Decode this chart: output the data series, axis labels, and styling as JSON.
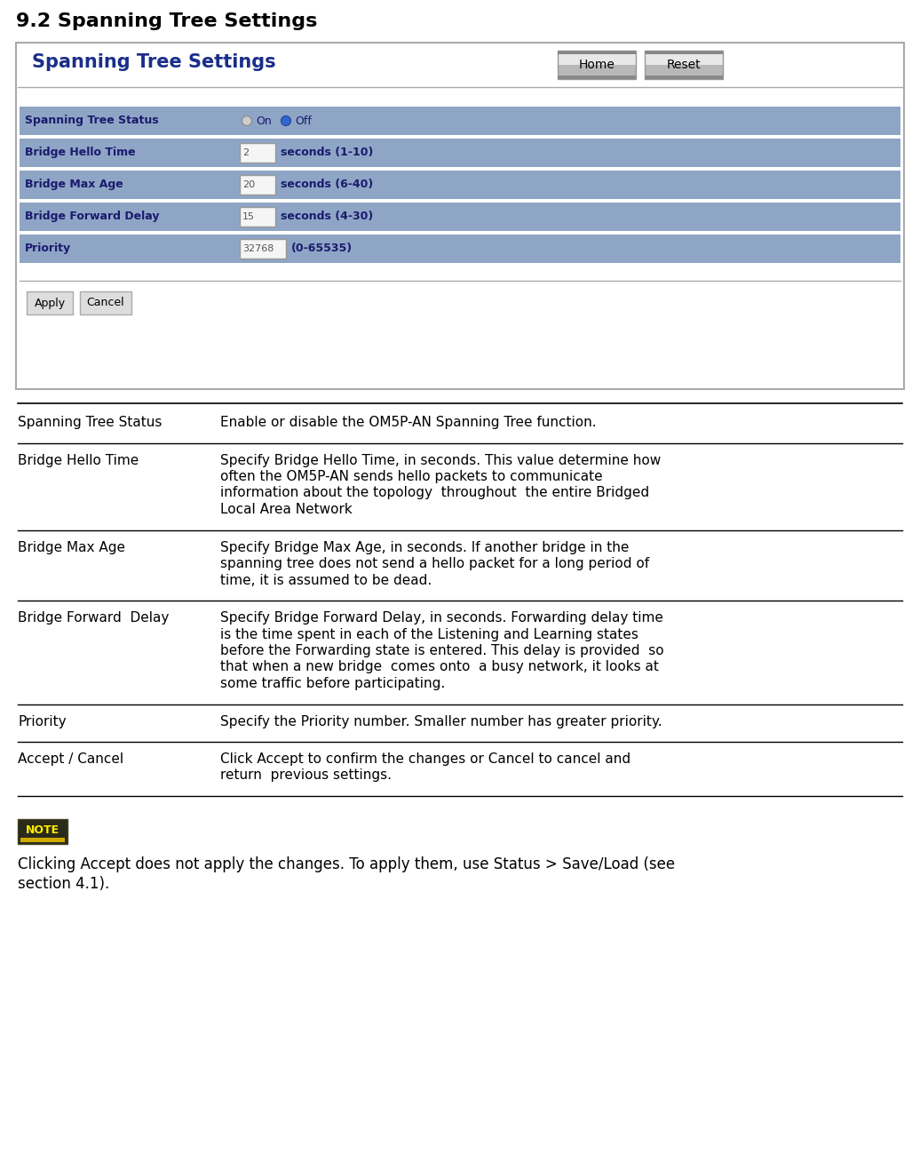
{
  "title": "9.2 Spanning Tree Settings",
  "ui_title": "Spanning Tree Settings",
  "page_bg": "#ffffff",
  "ui_border_color": "#aaaaaa",
  "row_bg_color": "#8fa5c5",
  "row_label_color": "#1a1a6e",
  "header_title_color": "#1a2e8a",
  "btn_bg": "#d0d0d0",
  "btn_border": "#999999",
  "rows": [
    {
      "label": "Spanning Tree Status",
      "type": "radio",
      "val": "",
      "hint": ""
    },
    {
      "label": "Bridge Hello Time",
      "type": "input",
      "val": "2",
      "hint": "seconds (1-10)"
    },
    {
      "label": "Bridge Max Age",
      "type": "input",
      "val": "20",
      "hint": "seconds (6-40)"
    },
    {
      "label": "Bridge Forward Delay",
      "type": "input",
      "val": "15",
      "hint": "seconds (4-30)"
    },
    {
      "label": "Priority",
      "type": "input",
      "val": "32768",
      "hint": "(0-65535)"
    }
  ],
  "table_rows": [
    {
      "term": "Spanning Tree Status",
      "lines": [
        "Enable or disable the OM5P-AN Spanning Tree function."
      ]
    },
    {
      "term": "Bridge Hello Time",
      "lines": [
        "Specify Bridge Hello Time, in seconds. This value determine how",
        "often the OM5P-AN sends hello packets to communicate",
        "information about the topology  throughout  the entire Bridged",
        "Local Area Network"
      ]
    },
    {
      "term": "Bridge Max Age",
      "lines": [
        "Specify Bridge Max Age, in seconds. If another bridge in the",
        "spanning tree does not send a hello packet for a long period of",
        "time, it is assumed to be dead."
      ]
    },
    {
      "term": "Bridge Forward  Delay",
      "lines": [
        "Specify Bridge Forward Delay, in seconds. Forwarding delay time",
        "is the time spent in each of the Listening and Learning states",
        "before the Forwarding state is entered. This delay is provided  so",
        "that when a new bridge  comes onto  a busy network, it looks at",
        "some traffic before participating."
      ]
    },
    {
      "term": "Priority",
      "lines": [
        "Specify the Priority number. Smaller number has greater priority."
      ]
    },
    {
      "term": "Accept / Cancel",
      "lines": [
        "Click Accept to confirm the changes or Cancel to cancel and",
        "return  previous settings."
      ]
    }
  ],
  "note_text_lines": [
    "Clicking Accept does not apply the changes. To apply them, use Status > Save/Load (see",
    "section 4.1)."
  ]
}
